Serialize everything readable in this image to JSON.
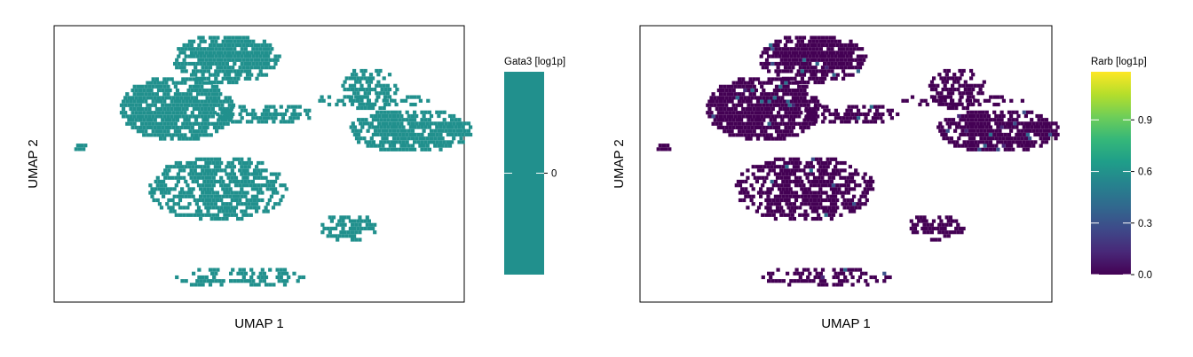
{
  "chart_data": [
    {
      "type": "scatter",
      "subtype": "umap-embedding-hexbin",
      "title": "",
      "xlabel": "UMAP 1",
      "ylabel": "UMAP 2",
      "x_ticks": false,
      "y_ticks": false,
      "grid": false,
      "colorbar": {
        "title": "Gata3 [log1p]",
        "ticks": [
          0
        ],
        "tick_labels": [
          "0"
        ],
        "range": [
          -1,
          1
        ],
        "colormap": "constant",
        "color": "#21908d"
      },
      "point_color": "#21908d",
      "clusters": [
        {
          "name": "cluster-a",
          "center": [
            0.42,
            0.88
          ],
          "extent": [
            0.13,
            0.09
          ],
          "density": 0.92
        },
        {
          "name": "cluster-b",
          "center": [
            0.3,
            0.7
          ],
          "extent": [
            0.14,
            0.12
          ],
          "density": 0.95
        },
        {
          "name": "cluster-c",
          "center": [
            0.51,
            0.68
          ],
          "extent": [
            0.12,
            0.04
          ],
          "density": 0.6
        },
        {
          "name": "cluster-d",
          "center": [
            0.77,
            0.77
          ],
          "extent": [
            0.07,
            0.08
          ],
          "density": 0.7
        },
        {
          "name": "cluster-e",
          "center": [
            0.87,
            0.62
          ],
          "extent": [
            0.15,
            0.08
          ],
          "density": 0.9
        },
        {
          "name": "cluster-f",
          "center": [
            0.78,
            0.73
          ],
          "extent": [
            0.15,
            0.025
          ],
          "density": 0.55
        },
        {
          "name": "cluster-g",
          "center": [
            0.06,
            0.56
          ],
          "extent": [
            0.02,
            0.02
          ],
          "density": 1.0
        },
        {
          "name": "cluster-h",
          "center": [
            0.4,
            0.41
          ],
          "extent": [
            0.17,
            0.12
          ],
          "density": 0.78
        },
        {
          "name": "cluster-i",
          "center": [
            0.72,
            0.27
          ],
          "extent": [
            0.07,
            0.05
          ],
          "density": 0.75
        },
        {
          "name": "cluster-j",
          "center": [
            0.45,
            0.09
          ],
          "extent": [
            0.16,
            0.04
          ],
          "density": 0.55
        }
      ]
    },
    {
      "type": "scatter",
      "subtype": "umap-embedding-hexbin",
      "title": "",
      "xlabel": "UMAP 1",
      "ylabel": "UMAP 2",
      "x_ticks": false,
      "y_ticks": false,
      "grid": false,
      "colorbar": {
        "title": "Rarb [log1p]",
        "ticks": [
          0.0,
          0.3,
          0.6,
          0.9
        ],
        "tick_labels": [
          "0.0",
          "0.3",
          "0.6",
          "0.9"
        ],
        "range": [
          0.0,
          1.18
        ],
        "colormap": "viridis",
        "stops": [
          "#440154",
          "#482878",
          "#3e4989",
          "#31688e",
          "#26828e",
          "#1f9e89",
          "#35b779",
          "#6ece58",
          "#b5de2b",
          "#fde725"
        ]
      },
      "point_color": "#440154",
      "clusters": [
        {
          "name": "cluster-a",
          "center": [
            0.42,
            0.88
          ],
          "extent": [
            0.13,
            0.09
          ],
          "density": 0.92
        },
        {
          "name": "cluster-b",
          "center": [
            0.3,
            0.7
          ],
          "extent": [
            0.14,
            0.12
          ],
          "density": 0.95
        },
        {
          "name": "cluster-c",
          "center": [
            0.51,
            0.68
          ],
          "extent": [
            0.12,
            0.04
          ],
          "density": 0.6
        },
        {
          "name": "cluster-d",
          "center": [
            0.77,
            0.77
          ],
          "extent": [
            0.07,
            0.08
          ],
          "density": 0.7
        },
        {
          "name": "cluster-e",
          "center": [
            0.87,
            0.62
          ],
          "extent": [
            0.15,
            0.08
          ],
          "density": 0.9
        },
        {
          "name": "cluster-f",
          "center": [
            0.78,
            0.73
          ],
          "extent": [
            0.15,
            0.025
          ],
          "density": 0.55
        },
        {
          "name": "cluster-g",
          "center": [
            0.06,
            0.56
          ],
          "extent": [
            0.02,
            0.02
          ],
          "density": 1.0
        },
        {
          "name": "cluster-h",
          "center": [
            0.4,
            0.41
          ],
          "extent": [
            0.17,
            0.12
          ],
          "density": 0.78
        },
        {
          "name": "cluster-i",
          "center": [
            0.72,
            0.27
          ],
          "extent": [
            0.07,
            0.05
          ],
          "density": 0.75
        },
        {
          "name": "cluster-j",
          "center": [
            0.45,
            0.09
          ],
          "extent": [
            0.16,
            0.04
          ],
          "density": 0.55
        }
      ],
      "highlight_colors": [
        "#3b528b",
        "#31688e",
        "#2c728e",
        "#482878"
      ]
    }
  ]
}
